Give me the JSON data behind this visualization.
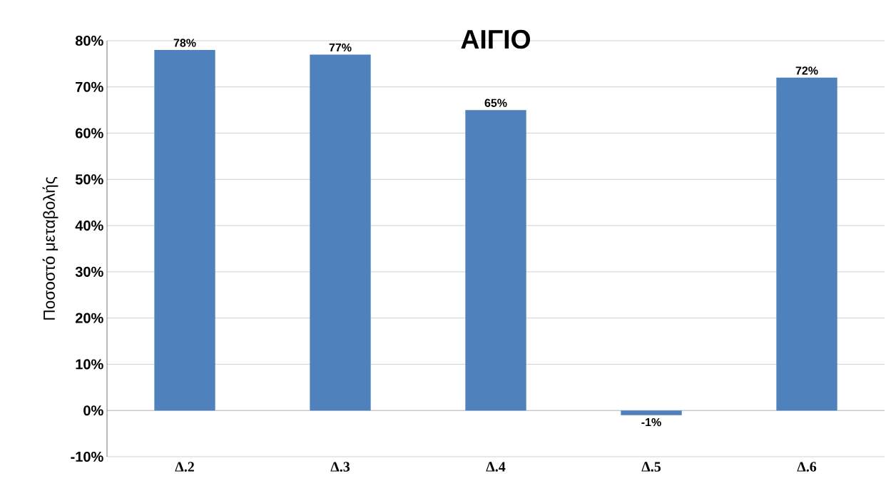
{
  "chart_data": {
    "type": "bar",
    "title": "ΑΙΓΙΟ",
    "ylabel": "Ποσοστό μεταβολής",
    "categories": [
      "Δ.2",
      "Δ.3",
      "Δ.4",
      "Δ.5",
      "Δ.6"
    ],
    "values": [
      78,
      77,
      65,
      -1,
      72
    ],
    "value_labels": [
      "78%",
      "77%",
      "65%",
      "-1%",
      "72%"
    ],
    "color": "#4f81bd",
    "ylim": [
      -10,
      80
    ],
    "yticks": [
      {
        "value": -10,
        "label": "-10%"
      },
      {
        "value": 0,
        "label": "0%"
      },
      {
        "value": 10,
        "label": "10%"
      },
      {
        "value": 20,
        "label": "20%"
      },
      {
        "value": 30,
        "label": "30%"
      },
      {
        "value": 40,
        "label": "40%"
      },
      {
        "value": 50,
        "label": "50%"
      },
      {
        "value": 60,
        "label": "60%"
      },
      {
        "value": 70,
        "label": "70%"
      },
      {
        "value": 80,
        "label": "80%"
      }
    ],
    "grid": "y"
  }
}
